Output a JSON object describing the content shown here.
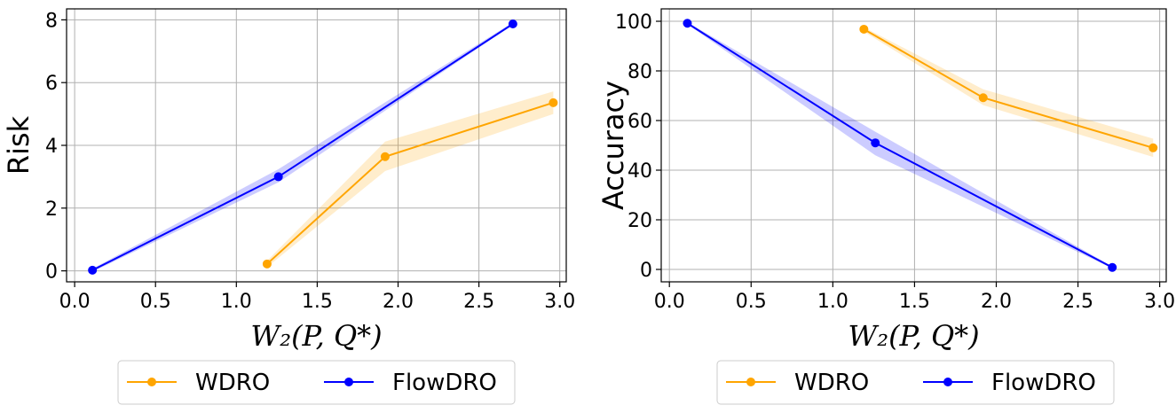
{
  "chart_data": [
    {
      "type": "line",
      "xlabel": "W₂(P, Q*)",
      "ylabel": "Risk",
      "xlim": [
        -0.05,
        3.04
      ],
      "ylim": [
        -0.35,
        8.35
      ],
      "xticks": [
        0.0,
        0.5,
        1.0,
        1.5,
        2.0,
        2.5,
        3.0
      ],
      "xtick_labels": [
        "0.0",
        "0.5",
        "1.0",
        "1.5",
        "2.0",
        "2.5",
        "3.0"
      ],
      "yticks": [
        0,
        2,
        4,
        6,
        8
      ],
      "ytick_labels": [
        "0",
        "2",
        "4",
        "6",
        "8"
      ],
      "grid": true,
      "legend": "below",
      "series": [
        {
          "name": "WDRO",
          "color": "#ffa500",
          "x": [
            1.19,
            1.92,
            2.96
          ],
          "y": [
            0.22,
            3.64,
            5.36
          ],
          "band_low": [
            0.12,
            3.18,
            5.0
          ],
          "band_high": [
            0.32,
            4.12,
            5.72
          ]
        },
        {
          "name": "FlowDRO",
          "color": "#0000ff",
          "x": [
            0.11,
            1.26,
            2.71
          ],
          "y": [
            0.02,
            3.0,
            7.87
          ],
          "band_low": [
            -0.03,
            2.82,
            7.84
          ],
          "band_high": [
            0.07,
            3.24,
            7.92
          ]
        }
      ]
    },
    {
      "type": "line",
      "xlabel": "W₂(P, Q*)",
      "ylabel": "Accuracy",
      "xlim": [
        -0.05,
        3.04
      ],
      "ylim": [
        -5,
        105
      ],
      "xticks": [
        0.0,
        0.5,
        1.0,
        1.5,
        2.0,
        2.5,
        3.0
      ],
      "xtick_labels": [
        "0.0",
        "0.5",
        "1.0",
        "1.5",
        "2.0",
        "2.5",
        "3.0"
      ],
      "yticks": [
        0,
        20,
        40,
        60,
        80,
        100
      ],
      "ytick_labels": [
        "0",
        "20",
        "40",
        "60",
        "80",
        "100"
      ],
      "grid": true,
      "legend": "below",
      "series": [
        {
          "name": "WDRO",
          "color": "#ffa500",
          "x": [
            1.19,
            1.92,
            2.96
          ],
          "y": [
            96.8,
            69.2,
            49.0
          ],
          "band_low": [
            95.8,
            66.2,
            45.3
          ],
          "band_high": [
            97.6,
            72.6,
            52.7
          ]
        },
        {
          "name": "FlowDRO",
          "color": "#0000ff",
          "x": [
            0.11,
            1.26,
            2.71
          ],
          "y": [
            99.2,
            51.0,
            0.8
          ],
          "band_low": [
            98.8,
            46.0,
            0.4
          ],
          "band_high": [
            99.6,
            55.5,
            1.2
          ]
        }
      ]
    }
  ]
}
